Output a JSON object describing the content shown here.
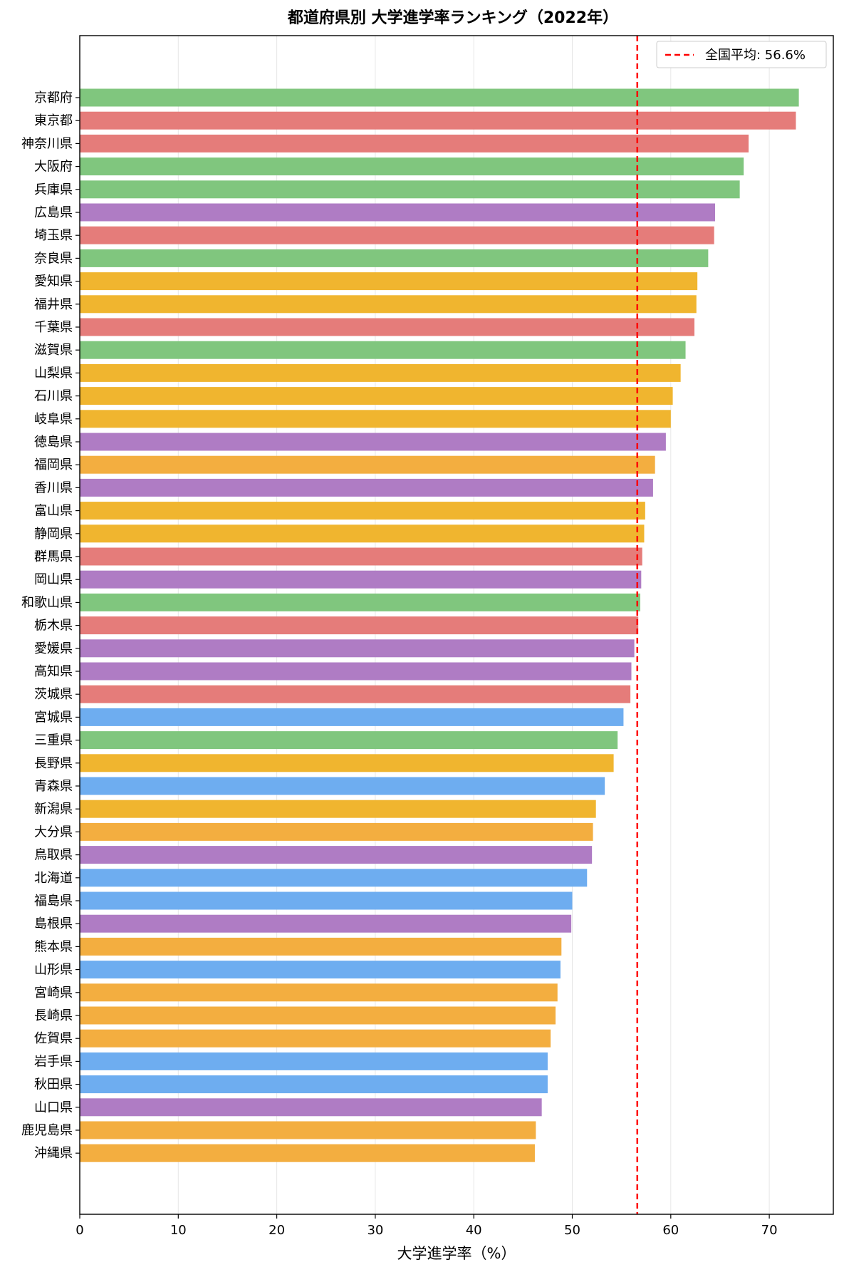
{
  "chart_data": {
    "type": "bar",
    "orientation": "horizontal",
    "title": "都道府県別 大学進学率ランキング（2022年）",
    "xlabel": "大学進学率（%）",
    "ylabel": "",
    "xlim": [
      0,
      76.5
    ],
    "xticks": [
      0,
      10,
      20,
      30,
      40,
      50,
      60,
      70
    ],
    "grid": "vertical",
    "legend": "top-right",
    "reference_line": {
      "label": "全国平均: 56.6%",
      "value": 56.6,
      "color": "#ff0000",
      "style": "dashed"
    },
    "region_colors": {
      "kanto": "#e57c7a",
      "kinki": "#80c67e",
      "chubu": "#f0b52f",
      "chugoku_shikoku": "#af7cc4",
      "kyushu_okinawa": "#f3ae40",
      "hokkaido_tohoku": "#6eadf0"
    },
    "categories": [
      "京都府",
      "東京都",
      "神奈川県",
      "大阪府",
      "兵庫県",
      "広島県",
      "埼玉県",
      "奈良県",
      "愛知県",
      "福井県",
      "千葉県",
      "滋賀県",
      "山梨県",
      "石川県",
      "岐阜県",
      "徳島県",
      "福岡県",
      "香川県",
      "富山県",
      "静岡県",
      "群馬県",
      "岡山県",
      "和歌山県",
      "栃木県",
      "愛媛県",
      "高知県",
      "茨城県",
      "宮城県",
      "三重県",
      "長野県",
      "青森県",
      "新潟県",
      "大分県",
      "鳥取県",
      "北海道",
      "福島県",
      "島根県",
      "熊本県",
      "山形県",
      "宮崎県",
      "長崎県",
      "佐賀県",
      "岩手県",
      "秋田県",
      "山口県",
      "鹿児島県",
      "沖縄県"
    ],
    "values": [
      73.0,
      72.7,
      67.9,
      67.4,
      67.0,
      64.5,
      64.4,
      63.8,
      62.7,
      62.6,
      62.4,
      61.5,
      61.0,
      60.2,
      60.0,
      59.5,
      58.4,
      58.2,
      57.4,
      57.3,
      57.1,
      57.0,
      56.9,
      56.7,
      56.3,
      56.0,
      55.9,
      55.2,
      54.6,
      54.2,
      53.3,
      52.4,
      52.1,
      52.0,
      51.5,
      50.0,
      49.9,
      48.9,
      48.8,
      48.5,
      48.3,
      47.8,
      47.5,
      47.5,
      46.9,
      46.3,
      46.2
    ],
    "regions": [
      "kinki",
      "kanto",
      "kanto",
      "kinki",
      "kinki",
      "chugoku_shikoku",
      "kanto",
      "kinki",
      "chubu",
      "chubu",
      "kanto",
      "kinki",
      "chubu",
      "chubu",
      "chubu",
      "chugoku_shikoku",
      "kyushu_okinawa",
      "chugoku_shikoku",
      "chubu",
      "chubu",
      "kanto",
      "chugoku_shikoku",
      "kinki",
      "kanto",
      "chugoku_shikoku",
      "chugoku_shikoku",
      "kanto",
      "hokkaido_tohoku",
      "kinki",
      "chubu",
      "hokkaido_tohoku",
      "chubu",
      "kyushu_okinawa",
      "chugoku_shikoku",
      "hokkaido_tohoku",
      "hokkaido_tohoku",
      "chugoku_shikoku",
      "kyushu_okinawa",
      "hokkaido_tohoku",
      "kyushu_okinawa",
      "kyushu_okinawa",
      "kyushu_okinawa",
      "hokkaido_tohoku",
      "hokkaido_tohoku",
      "chugoku_shikoku",
      "kyushu_okinawa",
      "kyushu_okinawa"
    ]
  }
}
